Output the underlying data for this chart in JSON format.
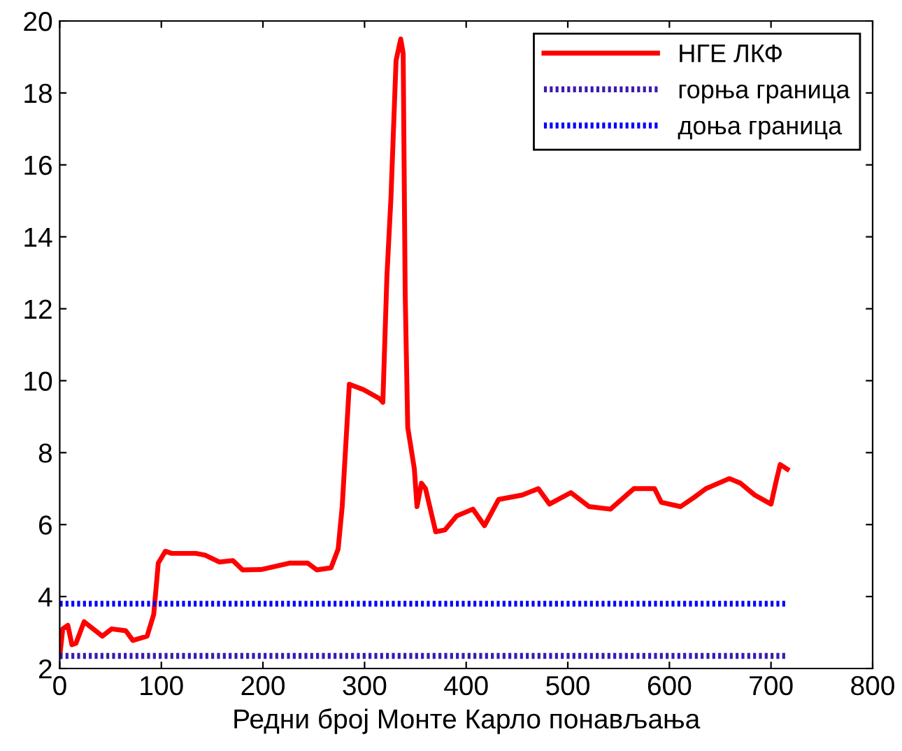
{
  "chart_data": {
    "type": "line",
    "xlabel": "Редни број Монте Карло понављања",
    "xlim": [
      0,
      800
    ],
    "ylim": [
      2,
      20
    ],
    "xticks": [
      0,
      100,
      200,
      300,
      400,
      500,
      600,
      700,
      800
    ],
    "yticks": [
      2,
      4,
      6,
      8,
      10,
      12,
      14,
      16,
      18,
      20
    ],
    "grid": false,
    "legend": "top right",
    "marker": "none",
    "series": [
      {
        "name": "НГЕ ЛКФ",
        "color": "#ff0000",
        "line_style": "solid",
        "x": [
          0,
          3,
          8,
          12,
          16,
          24,
          33,
          42,
          51,
          65,
          72,
          86,
          92.5,
          97,
          104,
          110,
          134,
          143,
          157,
          170.5,
          180,
          198,
          226,
          244,
          253,
          267,
          274,
          278,
          285,
          299,
          315,
          318,
          322,
          326,
          331,
          335.6,
          338,
          340,
          342.5,
          349,
          351.6,
          356,
          360,
          370,
          379,
          390.6,
          406.6,
          418,
          432,
          455,
          471,
          482,
          503,
          521,
          542,
          565,
          585.4,
          592,
          611,
          624.5,
          636,
          659,
          670,
          684,
          700,
          705,
          709,
          716
        ],
        "values": [
          2.33,
          3.1,
          3.2,
          2.66,
          2.7,
          3.3,
          3.1,
          2.9,
          3.1,
          3.05,
          2.78,
          2.9,
          3.5,
          4.93,
          5.26,
          5.2,
          5.2,
          5.15,
          4.96,
          5.0,
          4.74,
          4.75,
          4.93,
          4.93,
          4.74,
          4.8,
          5.32,
          6.5,
          9.9,
          9.75,
          9.5,
          9.4,
          12.9,
          15.1,
          18.9,
          19.5,
          19.1,
          12.4,
          8.7,
          7.55,
          6.5,
          7.15,
          7.0,
          5.8,
          5.85,
          6.24,
          6.43,
          5.97,
          6.7,
          6.82,
          7.0,
          6.57,
          6.89,
          6.5,
          6.43,
          7.0,
          7.0,
          6.62,
          6.5,
          6.76,
          7.0,
          7.28,
          7.15,
          6.82,
          6.57,
          7.2,
          7.67,
          7.54
        ]
      },
      {
        "name": "горња граница",
        "color": "#3a1ab0",
        "line_style": "dotted",
        "x": [
          0,
          714
        ],
        "values": [
          2.35,
          2.35
        ]
      },
      {
        "name": "доња граница",
        "color": "#0000ff",
        "line_style": "dotted",
        "x": [
          0,
          714
        ],
        "values": [
          3.8,
          3.8
        ]
      }
    ]
  }
}
